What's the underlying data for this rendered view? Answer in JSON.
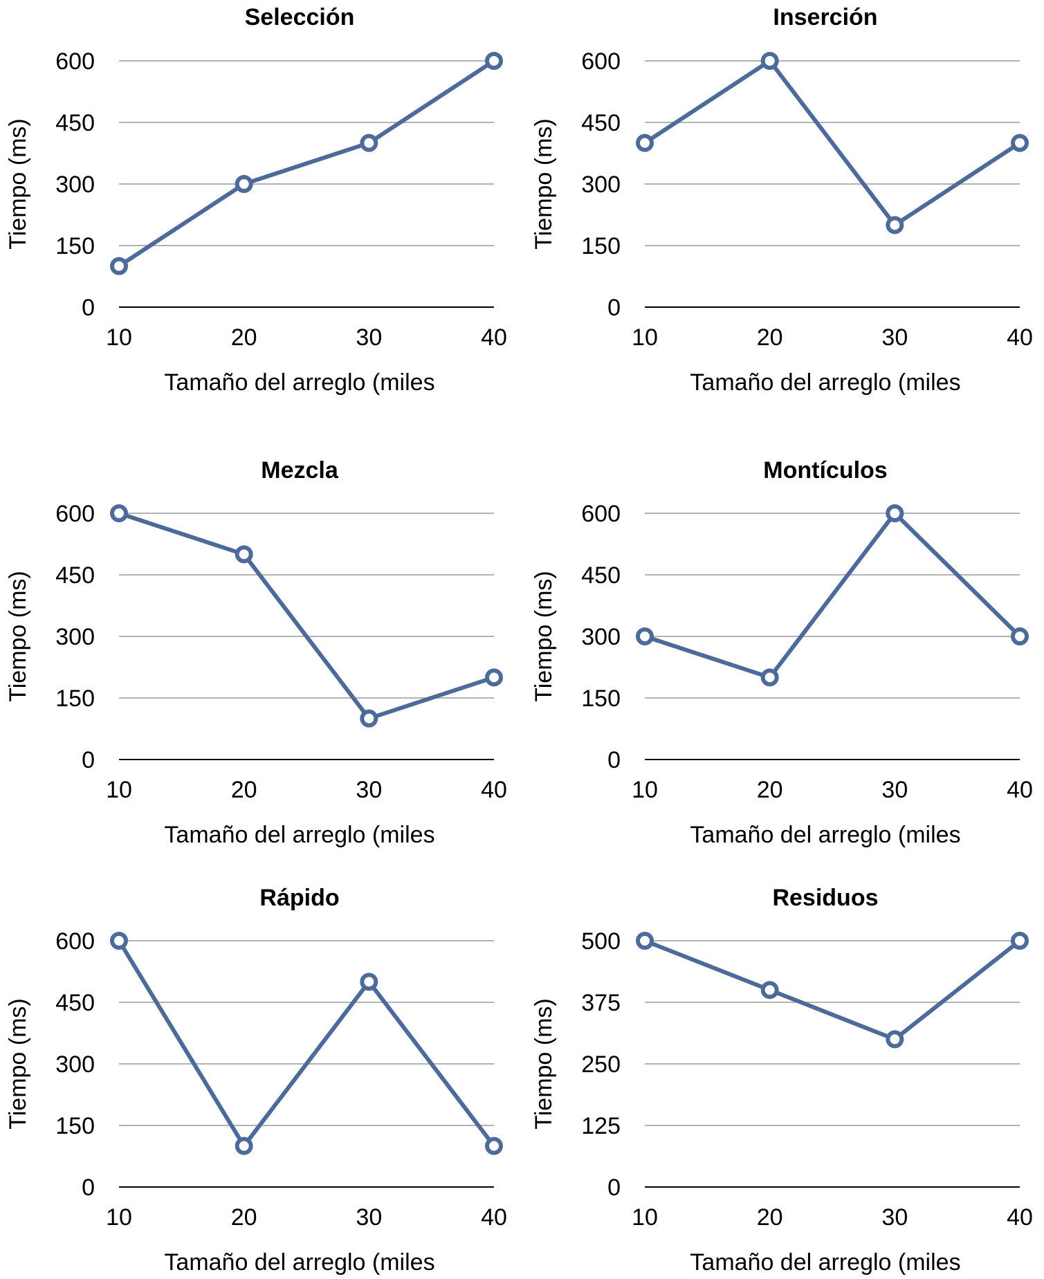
{
  "chart_data": [
    {
      "type": "line",
      "title": "Selección",
      "xlabel": "Tamaño del arreglo (miles",
      "ylabel": "Tiempo (ms)",
      "x": [
        10,
        20,
        30,
        40
      ],
      "y": [
        100,
        300,
        400,
        600
      ],
      "yticks": [
        0,
        150,
        300,
        450,
        600
      ],
      "ylim": [
        0,
        600
      ],
      "grid": true
    },
    {
      "type": "line",
      "title": "Inserción",
      "xlabel": "Tamaño del arreglo (miles",
      "ylabel": "Tiempo (ms)",
      "x": [
        10,
        20,
        30,
        40
      ],
      "y": [
        400,
        600,
        200,
        400
      ],
      "yticks": [
        0,
        150,
        300,
        450,
        600
      ],
      "ylim": [
        0,
        600
      ],
      "grid": true
    },
    {
      "type": "line",
      "title": "Mezcla",
      "xlabel": "Tamaño del arreglo (miles",
      "ylabel": "Tiempo (ms)",
      "x": [
        10,
        20,
        30,
        40
      ],
      "y": [
        600,
        500,
        100,
        200
      ],
      "yticks": [
        0,
        150,
        300,
        450,
        600
      ],
      "ylim": [
        0,
        600
      ],
      "grid": true
    },
    {
      "type": "line",
      "title": "Montículos",
      "xlabel": "Tamaño del arreglo (miles",
      "ylabel": "Tiempo (ms)",
      "x": [
        10,
        20,
        30,
        40
      ],
      "y": [
        300,
        200,
        600,
        300
      ],
      "yticks": [
        0,
        150,
        300,
        450,
        600
      ],
      "ylim": [
        0,
        600
      ],
      "grid": true
    },
    {
      "type": "line",
      "title": "Rápido",
      "xlabel": "Tamaño del arreglo (miles",
      "ylabel": "Tiempo (ms)",
      "x": [
        10,
        20,
        30,
        40
      ],
      "y": [
        600,
        100,
        500,
        100
      ],
      "yticks": [
        0,
        150,
        300,
        450,
        600
      ],
      "ylim": [
        0,
        600
      ],
      "grid": true
    },
    {
      "type": "line",
      "title": "Residuos",
      "xlabel": "Tamaño del arreglo (miles",
      "ylabel": "Tiempo (ms)",
      "x": [
        10,
        20,
        30,
        40
      ],
      "y": [
        500,
        400,
        300,
        500
      ],
      "yticks": [
        0,
        125,
        250,
        375,
        500
      ],
      "ylim": [
        0,
        500
      ],
      "grid": true
    }
  ],
  "colors": {
    "series": "#4c6a9a",
    "grid": "#b3b3b3",
    "axis": "#000000"
  }
}
